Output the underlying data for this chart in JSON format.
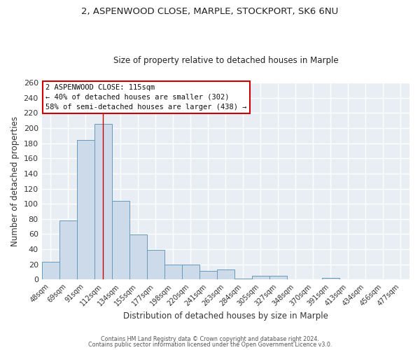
{
  "title1": "2, ASPENWOOD CLOSE, MARPLE, STOCKPORT, SK6 6NU",
  "title2": "Size of property relative to detached houses in Marple",
  "xlabel": "Distribution of detached houses by size in Marple",
  "ylabel": "Number of detached properties",
  "bar_color": "#ccdaea",
  "bar_edge_color": "#6699bb",
  "categories": [
    "48sqm",
    "69sqm",
    "91sqm",
    "112sqm",
    "134sqm",
    "155sqm",
    "177sqm",
    "198sqm",
    "220sqm",
    "241sqm",
    "263sqm",
    "284sqm",
    "305sqm",
    "327sqm",
    "348sqm",
    "370sqm",
    "391sqm",
    "413sqm",
    "434sqm",
    "456sqm",
    "477sqm"
  ],
  "values": [
    23,
    78,
    184,
    206,
    104,
    59,
    39,
    20,
    20,
    11,
    13,
    1,
    5,
    5,
    0,
    0,
    2,
    0,
    0,
    0,
    0
  ],
  "vline_x": 3.0,
  "vline_color": "#cc0000",
  "ylim": [
    0,
    260
  ],
  "yticks": [
    0,
    20,
    40,
    60,
    80,
    100,
    120,
    140,
    160,
    180,
    200,
    220,
    240,
    260
  ],
  "annotation_title": "2 ASPENWOOD CLOSE: 115sqm",
  "annotation_line1": "← 40% of detached houses are smaller (302)",
  "annotation_line2": "58% of semi-detached houses are larger (438) →",
  "footer1": "Contains HM Land Registry data © Crown copyright and database right 2024.",
  "footer2": "Contains public sector information licensed under the Open Government Licence v3.0.",
  "bg_color": "#ffffff",
  "plot_bg_color": "#e8eef4",
  "grid_color": "#ffffff",
  "annotation_box_color": "#ffffff",
  "annotation_box_edge": "#cc0000"
}
